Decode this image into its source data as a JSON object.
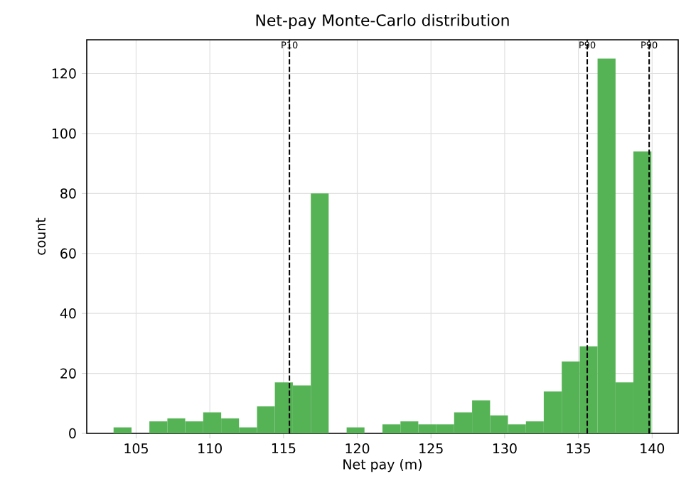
{
  "chart_data": {
    "type": "histogram",
    "title": "Net-pay Monte-Carlo distribution",
    "xlabel": "Net pay (m)",
    "ylabel": "count",
    "bins": [
      103.47,
      104.69,
      105.9,
      107.12,
      108.33,
      109.55,
      110.77,
      111.98,
      113.2,
      114.41,
      115.63,
      116.85,
      118.06,
      119.28,
      120.49,
      121.71,
      122.93,
      124.14,
      125.36,
      126.57,
      127.79,
      129.01,
      130.22,
      131.44,
      132.65,
      133.87,
      135.09,
      136.3,
      137.52,
      138.73,
      139.95
    ],
    "values": [
      2,
      0,
      4,
      5,
      4,
      7,
      5,
      2,
      9,
      17,
      16,
      80,
      0,
      2,
      0,
      3,
      4,
      3,
      3,
      7,
      11,
      6,
      3,
      4,
      14,
      24,
      29,
      125,
      17,
      94
    ],
    "color": "#55b355",
    "xlim": [
      101.65,
      141.77
    ],
    "ylim": [
      0,
      131.25
    ],
    "xticks": [
      105,
      110,
      115,
      120,
      125,
      130,
      135,
      140
    ],
    "yticks": [
      0,
      20,
      40,
      60,
      80,
      100,
      120
    ],
    "grid": true,
    "ref_lines": [
      {
        "axis": "x",
        "value": 115.4,
        "label": "P10",
        "color": "#000000",
        "line_style": "dashed"
      },
      {
        "axis": "x",
        "value": 135.6,
        "label": "P90",
        "color": "#000000",
        "line_style": "dashed"
      },
      {
        "axis": "x",
        "value": 139.8,
        "label": "P90",
        "color": "#000000",
        "line_style": "dashed"
      }
    ]
  }
}
